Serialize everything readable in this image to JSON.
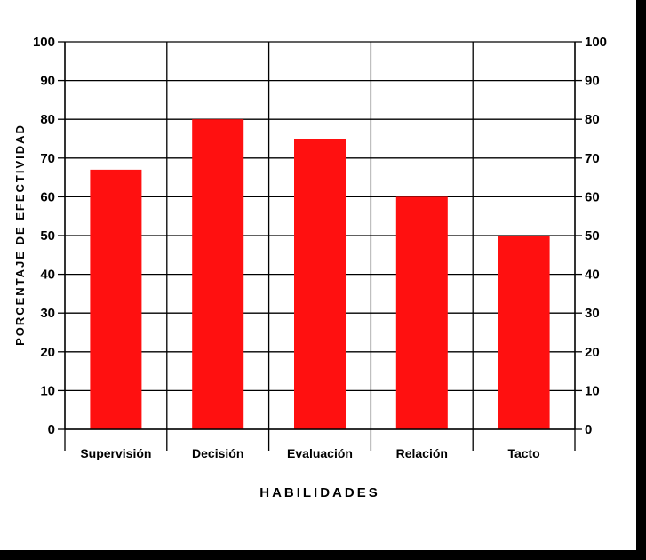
{
  "chart_data": {
    "type": "bar",
    "categories": [
      "Supervisión",
      "Decisión",
      "Evaluación",
      "Relación",
      "Tacto"
    ],
    "values": [
      67,
      80,
      75,
      60,
      50
    ],
    "xlabel": "HABILIDADES",
    "ylabel": "PORCENTAJE DE EFECTIVIDAD",
    "ylim": [
      0,
      100
    ],
    "yticks": [
      0,
      10,
      20,
      30,
      40,
      50,
      60,
      70,
      80,
      90,
      100
    ],
    "grid": true,
    "right_axis": true,
    "bar_color": "#ff1010"
  }
}
